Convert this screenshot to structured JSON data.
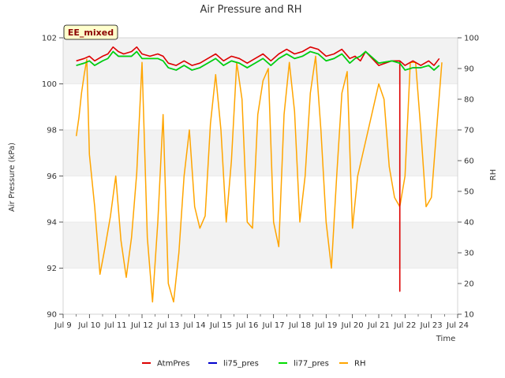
{
  "chart_data": {
    "type": "line",
    "title": "Air Pressure and RH",
    "badge": "EE_mixed",
    "xlabel": "Time",
    "ylabel": "Air Pressure (kPa)",
    "y2label": "RH",
    "xlim": [
      9,
      24
    ],
    "ylim": [
      90,
      102
    ],
    "y2lim": [
      10,
      100
    ],
    "x_ticks": [
      {
        "value": 9,
        "label": "Jul 9"
      },
      {
        "value": 10,
        "label": "Jul 10"
      },
      {
        "value": 11,
        "label": "Jul 11"
      },
      {
        "value": 12,
        "label": "Jul 12"
      },
      {
        "value": 13,
        "label": "Jul 13"
      },
      {
        "value": 14,
        "label": "Jul 14"
      },
      {
        "value": 15,
        "label": "Jul 15"
      },
      {
        "value": 16,
        "label": "Jul 16"
      },
      {
        "value": 17,
        "label": "Jul 17"
      },
      {
        "value": 18,
        "label": "Jul 18"
      },
      {
        "value": 19,
        "label": "Jul 19"
      },
      {
        "value": 20,
        "label": "Jul 20"
      },
      {
        "value": 21,
        "label": "Jul 21"
      },
      {
        "value": 22,
        "label": "Jul 22"
      },
      {
        "value": 23,
        "label": "Jul 23"
      },
      {
        "value": 24,
        "label": "Jul 24"
      }
    ],
    "y_ticks": [
      "90",
      "92",
      "94",
      "96",
      "98",
      "100",
      "102"
    ],
    "y2_ticks": [
      "10",
      "20",
      "30",
      "40",
      "50",
      "60",
      "70",
      "80",
      "90",
      "100"
    ],
    "grid": "horizontal bands",
    "legend_position": "bottom-center",
    "series": [
      {
        "name": "AtmPres",
        "color": "#dd0000",
        "axis": "left",
        "x": [
          9.5,
          9.8,
          10.0,
          10.2,
          10.5,
          10.7,
          10.9,
          11.1,
          11.3,
          11.6,
          11.8,
          12.0,
          12.3,
          12.6,
          12.8,
          13.0,
          13.3,
          13.6,
          13.9,
          14.2,
          14.5,
          14.8,
          15.1,
          15.4,
          15.7,
          16.0,
          16.3,
          16.6,
          16.9,
          17.2,
          17.5,
          17.8,
          18.1,
          18.4,
          18.7,
          19.0,
          19.3,
          19.6,
          19.9,
          20.1,
          20.3,
          20.5,
          21.0,
          21.5,
          21.8,
          21.8,
          21.8,
          22.0,
          22.3,
          22.6,
          22.9,
          23.1,
          23.3
        ],
        "y": [
          101.0,
          101.1,
          101.2,
          101.0,
          101.2,
          101.3,
          101.6,
          101.4,
          101.3,
          101.4,
          101.6,
          101.3,
          101.2,
          101.3,
          101.2,
          100.9,
          100.8,
          101.0,
          100.8,
          100.9,
          101.1,
          101.3,
          101.0,
          101.2,
          101.1,
          100.9,
          101.1,
          101.3,
          101.0,
          101.3,
          101.5,
          101.3,
          101.4,
          101.6,
          101.5,
          101.2,
          101.3,
          101.5,
          101.1,
          101.2,
          101.0,
          101.4,
          100.8,
          101.0,
          101.0,
          91.0,
          101.0,
          100.8,
          101.0,
          100.8,
          101.0,
          100.8,
          101.1
        ]
      },
      {
        "name": "li75_pres",
        "color": "#0000cc",
        "axis": "left",
        "x": [
          9.5,
          9.8,
          10.0,
          10.2,
          10.5,
          10.7,
          10.9,
          11.1,
          11.3,
          11.6,
          11.8,
          12.0,
          12.3,
          12.6,
          12.8,
          13.0,
          13.3,
          13.6,
          13.9,
          14.2,
          14.5,
          14.8,
          15.1,
          15.4,
          15.7,
          16.0,
          16.3,
          16.6,
          16.9,
          17.2,
          17.5,
          17.8,
          18.1,
          18.4,
          18.7,
          19.0,
          19.3,
          19.6,
          19.9,
          20.1,
          20.3,
          20.5,
          21.0,
          21.5,
          21.8,
          22.0,
          22.3,
          22.6,
          22.9,
          23.1,
          23.3
        ],
        "y": [
          100.8,
          100.9,
          101.0,
          100.8,
          101.0,
          101.1,
          101.4,
          101.2,
          101.2,
          101.2,
          101.4,
          101.1,
          101.1,
          101.1,
          101.0,
          100.7,
          100.6,
          100.8,
          100.6,
          100.7,
          100.9,
          101.1,
          100.8,
          101.0,
          100.9,
          100.7,
          100.9,
          101.1,
          100.8,
          101.1,
          101.3,
          101.1,
          101.2,
          101.4,
          101.3,
          101.0,
          101.1,
          101.3,
          100.9,
          101.1,
          101.2,
          101.4,
          100.9,
          101.0,
          100.9,
          100.6,
          100.7,
          100.7,
          100.8,
          100.6,
          100.8
        ]
      },
      {
        "name": "li77_pres",
        "color": "#00dd00",
        "axis": "left",
        "x": [
          9.5,
          9.8,
          10.0,
          10.2,
          10.5,
          10.7,
          10.9,
          11.1,
          11.3,
          11.6,
          11.8,
          12.0,
          12.3,
          12.6,
          12.8,
          13.0,
          13.3,
          13.6,
          13.9,
          14.2,
          14.5,
          14.8,
          15.1,
          15.4,
          15.7,
          16.0,
          16.3,
          16.6,
          16.9,
          17.2,
          17.5,
          17.8,
          18.1,
          18.4,
          18.7,
          19.0,
          19.3,
          19.6,
          19.9,
          20.1,
          20.3,
          20.5,
          21.0,
          21.5,
          21.8,
          22.0,
          22.3,
          22.6,
          22.9,
          23.1,
          23.3
        ],
        "y": [
          100.8,
          100.9,
          101.0,
          100.8,
          101.0,
          101.1,
          101.4,
          101.2,
          101.2,
          101.2,
          101.4,
          101.1,
          101.1,
          101.1,
          101.0,
          100.7,
          100.6,
          100.8,
          100.6,
          100.7,
          100.9,
          101.1,
          100.8,
          101.0,
          100.9,
          100.7,
          100.9,
          101.1,
          100.8,
          101.1,
          101.3,
          101.1,
          101.2,
          101.4,
          101.3,
          101.0,
          101.1,
          101.3,
          100.9,
          101.1,
          101.2,
          101.4,
          100.9,
          101.0,
          100.9,
          100.6,
          100.7,
          100.7,
          100.8,
          100.6,
          100.8
        ]
      },
      {
        "name": "RH",
        "color": "#ffa500",
        "axis": "right",
        "x": [
          9.5,
          9.6,
          9.7,
          9.8,
          9.9,
          10.0,
          10.2,
          10.4,
          10.6,
          10.8,
          11.0,
          11.2,
          11.4,
          11.6,
          11.8,
          12.0,
          12.2,
          12.4,
          12.6,
          12.8,
          13.0,
          13.2,
          13.4,
          13.6,
          13.8,
          14.0,
          14.2,
          14.4,
          14.6,
          14.8,
          15.0,
          15.2,
          15.4,
          15.6,
          15.8,
          16.0,
          16.2,
          16.4,
          16.6,
          16.8,
          17.0,
          17.2,
          17.4,
          17.6,
          17.8,
          18.0,
          18.2,
          18.4,
          18.6,
          18.8,
          19.0,
          19.2,
          19.4,
          19.6,
          19.8,
          20.0,
          20.2,
          21.0,
          21.2,
          21.4,
          21.6,
          21.8,
          22.0,
          22.2,
          22.4,
          22.6,
          22.8,
          23.0,
          23.2,
          23.4
        ],
        "y": [
          68,
          74,
          82,
          88,
          93,
          62,
          45,
          23,
          32,
          42,
          55,
          34,
          22,
          35,
          56,
          92,
          35,
          14,
          40,
          75,
          20,
          14,
          30,
          55,
          70,
          45,
          38,
          42,
          72,
          88,
          70,
          40,
          60,
          92,
          80,
          40,
          38,
          75,
          86,
          90,
          40,
          32,
          75,
          92,
          76,
          40,
          55,
          82,
          94,
          70,
          40,
          25,
          55,
          82,
          89,
          38,
          55,
          85,
          80,
          58,
          48,
          45,
          55,
          92,
          92,
          70,
          45,
          48,
          70,
          92
        ]
      }
    ]
  }
}
